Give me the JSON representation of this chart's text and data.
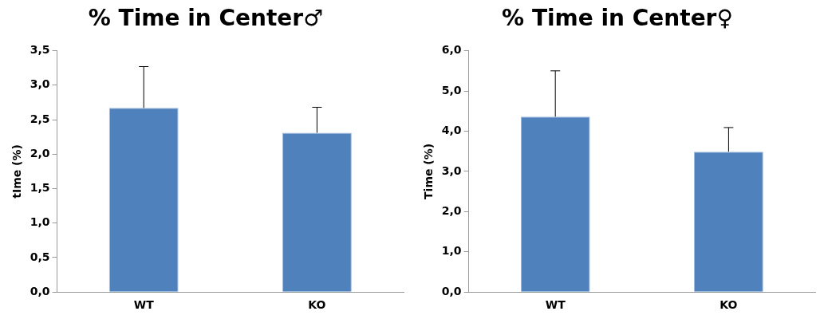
{
  "chart_data": [
    {
      "type": "bar",
      "title": "% Time in Center♂",
      "ylabel": "tIme (%)",
      "categories": [
        "WT",
        "KO"
      ],
      "values": [
        2.67,
        2.31
      ],
      "errors": [
        [
          2.67,
          3.27
        ],
        [
          2.31,
          2.68
        ]
      ],
      "color": "#4f81bd",
      "ylim": [
        0,
        3.5
      ],
      "yticks": [
        {
          "value": 0,
          "label": "0,0"
        },
        {
          "value": 0.5,
          "label": "0,5"
        },
        {
          "value": 1,
          "label": "1,0"
        },
        {
          "value": 1.5,
          "label": "1,5"
        },
        {
          "value": 2,
          "label": "2,0"
        },
        {
          "value": 2.5,
          "label": "2,5"
        },
        {
          "value": 3,
          "label": "3,0"
        },
        {
          "value": 3.5,
          "label": "3,5"
        }
      ],
      "grid": false,
      "legend": false
    },
    {
      "type": "bar",
      "title": "% Time in Center♀",
      "ylabel": "Time (%)",
      "categories": [
        "WT",
        "KO"
      ],
      "values": [
        4.36,
        3.49
      ],
      "errors": [
        [
          4.36,
          5.5
        ],
        [
          3.49,
          4.09
        ]
      ],
      "color": "#4f81bd",
      "ylim": [
        0,
        6
      ],
      "yticks": [
        {
          "value": 0,
          "label": "0,0"
        },
        {
          "value": 1,
          "label": "1,0"
        },
        {
          "value": 2,
          "label": "2,0"
        },
        {
          "value": 3,
          "label": "3,0"
        },
        {
          "value": 4,
          "label": "4,0"
        },
        {
          "value": 5,
          "label": "5,0"
        },
        {
          "value": 6,
          "label": "6,0"
        }
      ],
      "grid": false,
      "legend": false
    }
  ]
}
